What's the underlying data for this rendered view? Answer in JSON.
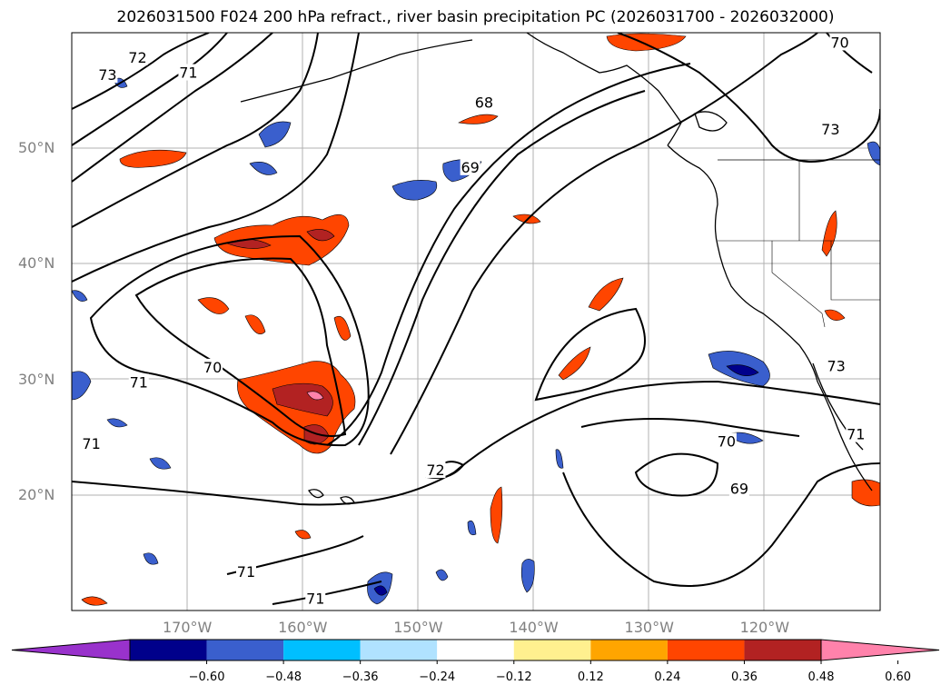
{
  "title": "2026031500 F024 200 hPa refract., river basin precipitation PC (2026031700 - 2026032000)",
  "map": {
    "lon_range": [
      -180,
      -110
    ],
    "lat_range": [
      10,
      60
    ],
    "lat_labels": [
      {
        "lat": 50,
        "text": "50°N"
      },
      {
        "lat": 40,
        "text": "40°N"
      },
      {
        "lat": 30,
        "text": "30°N"
      },
      {
        "lat": 20,
        "text": "20°N"
      }
    ],
    "lon_labels": [
      {
        "lon": -170,
        "text": "170°W"
      },
      {
        "lon": -160,
        "text": "160°W"
      },
      {
        "lon": -150,
        "text": "150°W"
      },
      {
        "lon": -140,
        "text": "140°W"
      },
      {
        "lon": -130,
        "text": "130°W"
      },
      {
        "lon": -120,
        "text": "120°W"
      }
    ],
    "contour_labels": [
      {
        "text": "72",
        "lon": -174.3,
        "lat": 57.8
      },
      {
        "text": "73",
        "lon": -176.9,
        "lat": 56.3
      },
      {
        "text": "71",
        "lon": -169.9,
        "lat": 56.5
      },
      {
        "text": "68",
        "lon": -144.3,
        "lat": 53.9
      },
      {
        "text": "69",
        "lon": -145.5,
        "lat": 48.3
      },
      {
        "text": "70",
        "lon": -113.5,
        "lat": 59.1
      },
      {
        "text": "73",
        "lon": -114.3,
        "lat": 51.6
      },
      {
        "text": "70",
        "lon": -167.8,
        "lat": 31.0
      },
      {
        "text": "71",
        "lon": -174.2,
        "lat": 29.7
      },
      {
        "text": "71",
        "lon": -178.3,
        "lat": 24.4
      },
      {
        "text": "72",
        "lon": -148.5,
        "lat": 22.1
      },
      {
        "text": "70",
        "lon": -123.3,
        "lat": 24.6
      },
      {
        "text": "69",
        "lon": -122.2,
        "lat": 20.5
      },
      {
        "text": "73",
        "lon": -113.8,
        "lat": 31.1
      },
      {
        "text": "71",
        "lon": -112.1,
        "lat": 25.2
      },
      {
        "text": "71",
        "lon": -164.9,
        "lat": 13.3
      },
      {
        "text": "71",
        "lon": -158.9,
        "lat": 11.0
      }
    ]
  },
  "colorbar": {
    "colors": [
      "#9932cc",
      "#00008b",
      "#3a5fcd",
      "#00bfff",
      "#b0e2ff",
      "#ffffff",
      "#fff08f",
      "#ffa500",
      "#ff4500",
      "#b22222",
      "#ff82ab"
    ],
    "ticks": [
      "−0.60",
      "−0.48",
      "−0.36",
      "−0.24",
      "−0.12",
      "0.12",
      "0.24",
      "0.36",
      "0.48",
      "0.60"
    ]
  }
}
